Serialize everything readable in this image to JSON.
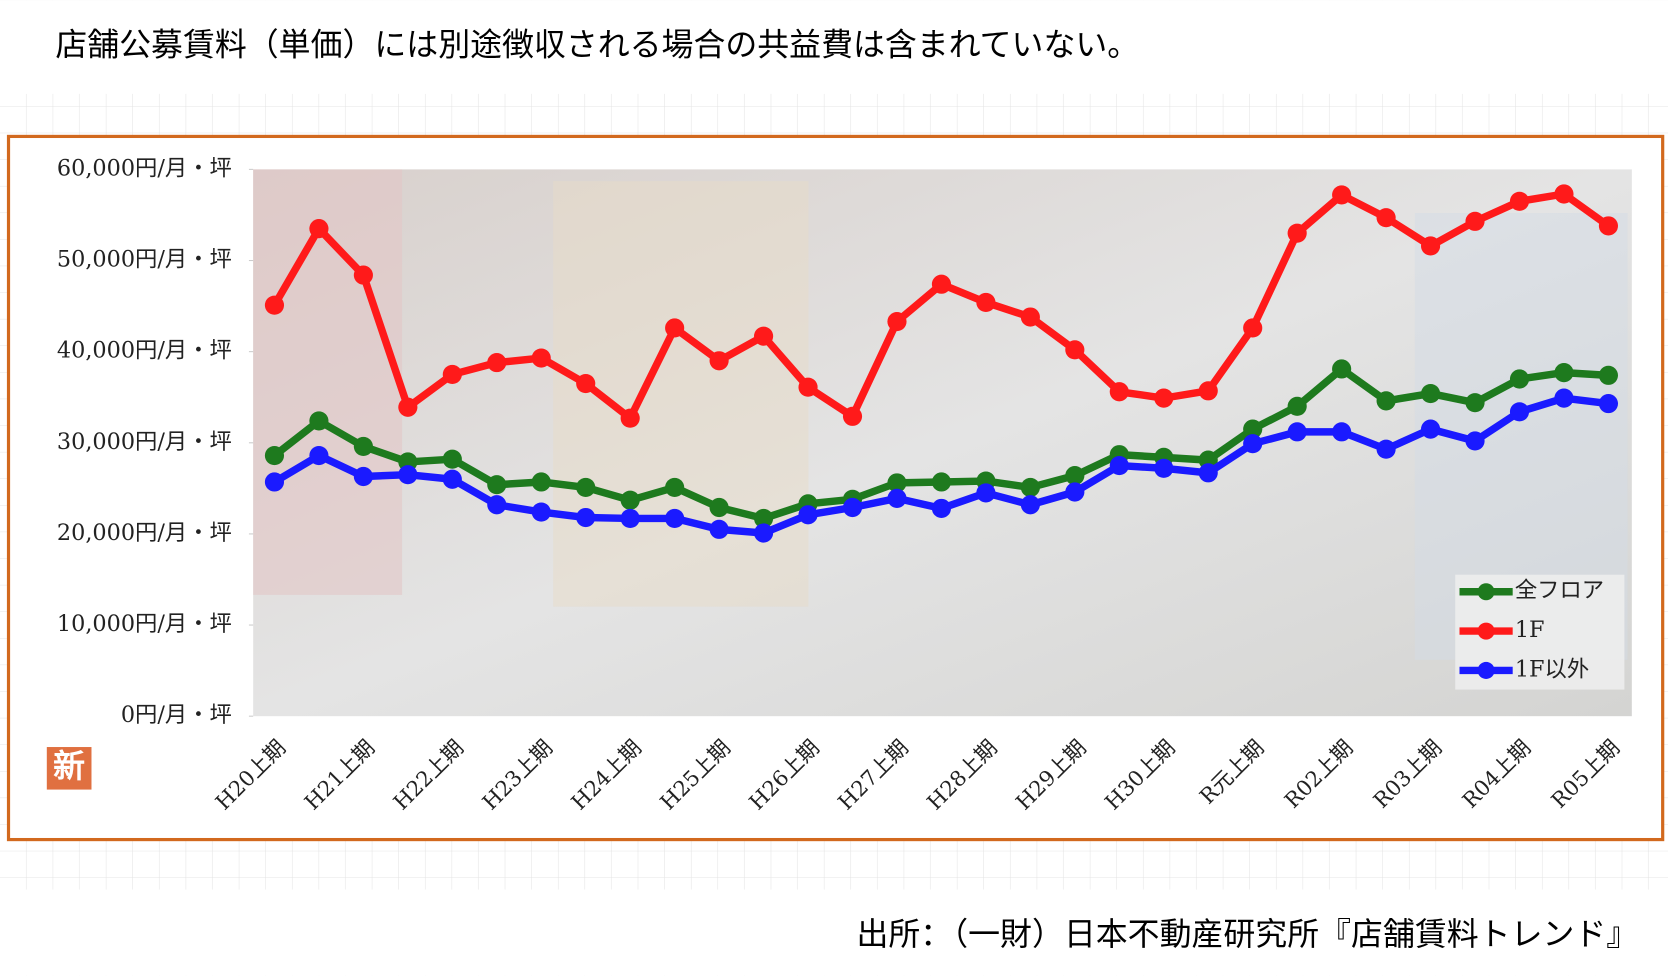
{
  "header_note": "店舗公募賃料（単価）には別途徴収される場合の共益費は含まれていない。",
  "source": "出所：（一財）日本不動産研究所『店舗賃料トレンド』",
  "icon_text": "新",
  "chart_data": {
    "type": "line",
    "categories": [
      "H20上期",
      null,
      "H21上期",
      null,
      "H22上期",
      null,
      "H23上期",
      null,
      "H24上期",
      null,
      "H25上期",
      null,
      "H26上期",
      null,
      "H27上期",
      null,
      "H28上期",
      null,
      "H29上期",
      null,
      "H30上期",
      null,
      "R元上期",
      null,
      "R02上期",
      null,
      "R03上期",
      null,
      "R04上期",
      null,
      "R05上期"
    ],
    "series": [
      {
        "name": "全フロア",
        "color": "#1e7a1e",
        "values": [
          28600,
          32400,
          29600,
          27900,
          28200,
          25400,
          25700,
          25100,
          23700,
          25100,
          22900,
          21700,
          23300,
          23800,
          25600,
          25700,
          25800,
          25100,
          26400,
          28700,
          28400,
          28100,
          31500,
          34000,
          38100,
          34600,
          35400,
          34400,
          37000,
          37700,
          37400
        ]
      },
      {
        "name": "1F",
        "color": "#ff1a1a",
        "values": [
          45100,
          53500,
          48400,
          33900,
          37500,
          38800,
          39300,
          36500,
          32700,
          42600,
          39000,
          41700,
          36100,
          32900,
          43300,
          47400,
          45400,
          43800,
          40200,
          35600,
          34900,
          35700,
          42600,
          53000,
          57200,
          54700,
          51600,
          54300,
          56500,
          57300,
          53800
        ]
      },
      {
        "name": "1F以外",
        "color": "#1a1aff",
        "values": [
          25700,
          28600,
          26300,
          26500,
          26000,
          23200,
          22400,
          21800,
          21700,
          21700,
          20500,
          20100,
          22100,
          22900,
          23900,
          22800,
          24500,
          23200,
          24600,
          27500,
          27200,
          26700,
          29900,
          31200,
          31200,
          29300,
          31500,
          30200,
          33400,
          34900,
          34300
        ]
      }
    ],
    "ylim": [
      0,
      60000
    ],
    "yticks": [
      {
        "value": 0,
        "label": "0円/月・坪"
      },
      {
        "value": 10000,
        "label": "10,000円/月・坪"
      },
      {
        "value": 20000,
        "label": "20,000円/月・坪"
      },
      {
        "value": 30000,
        "label": "30,000円/月・坪"
      },
      {
        "value": 40000,
        "label": "40,000円/月・坪"
      },
      {
        "value": 50000,
        "label": "50,000円/月・坪"
      },
      {
        "value": 60000,
        "label": "60,000円/月・坪"
      }
    ],
    "legend": "lower right",
    "grid": false
  }
}
